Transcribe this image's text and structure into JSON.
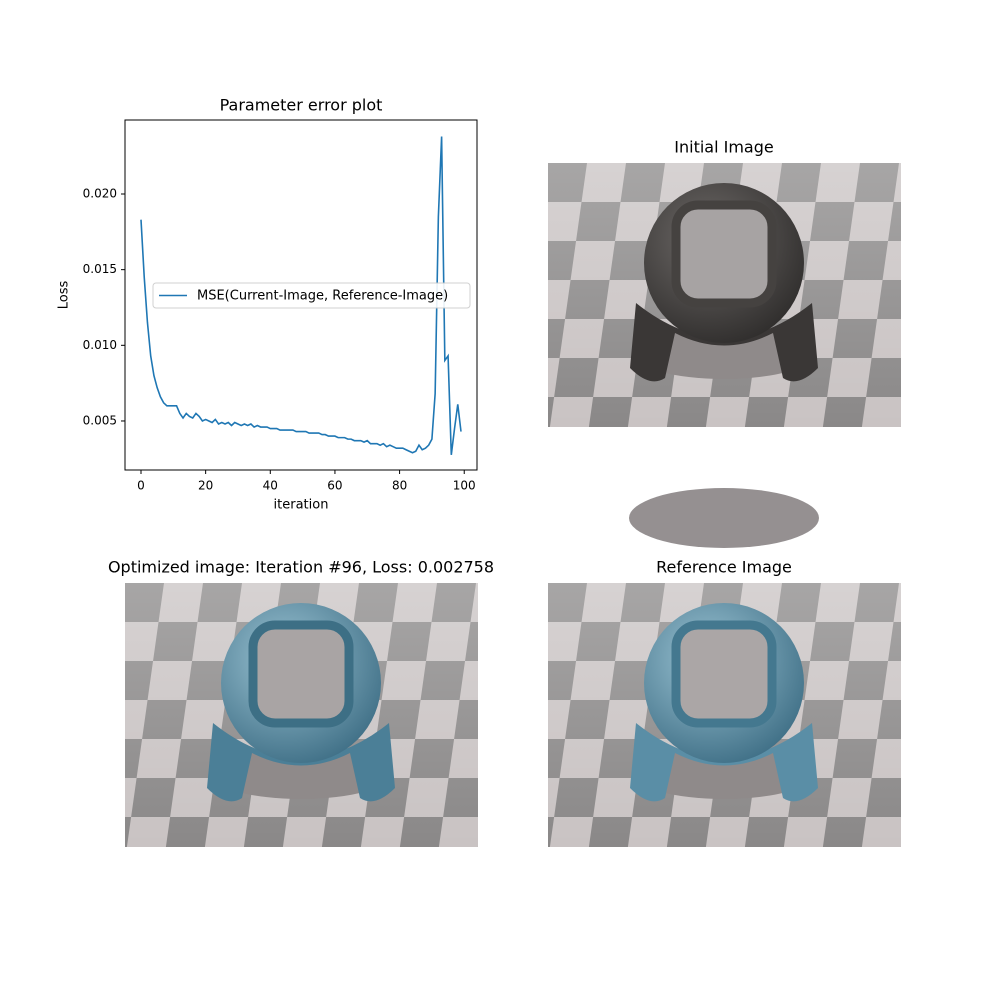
{
  "chart_data": {
    "type": "line",
    "title": "Parameter error plot",
    "xlabel": "iteration",
    "ylabel": "Loss",
    "x": [
      0,
      1,
      2,
      3,
      4,
      5,
      6,
      7,
      8,
      9,
      10,
      11,
      12,
      13,
      14,
      15,
      16,
      17,
      18,
      19,
      20,
      21,
      22,
      23,
      24,
      25,
      26,
      27,
      28,
      29,
      30,
      31,
      32,
      33,
      34,
      35,
      36,
      37,
      38,
      39,
      40,
      41,
      42,
      43,
      44,
      45,
      46,
      47,
      48,
      49,
      50,
      51,
      52,
      53,
      54,
      55,
      56,
      57,
      58,
      59,
      60,
      61,
      62,
      63,
      64,
      65,
      66,
      67,
      68,
      69,
      70,
      71,
      72,
      73,
      74,
      75,
      76,
      77,
      78,
      79,
      80,
      81,
      82,
      83,
      84,
      85,
      86,
      87,
      88,
      89,
      90,
      91,
      92,
      93,
      94,
      95,
      96,
      97,
      98,
      99
    ],
    "series": [
      {
        "name": "MSE(Current-Image, Reference-Image)",
        "color": "#1f77b4",
        "values": [
          0.0183,
          0.0145,
          0.0115,
          0.0093,
          0.008,
          0.0072,
          0.0066,
          0.0062,
          0.006,
          0.006,
          0.006,
          0.006,
          0.0055,
          0.0052,
          0.0055,
          0.0053,
          0.0052,
          0.0055,
          0.0053,
          0.005,
          0.0051,
          0.005,
          0.0049,
          0.0051,
          0.0048,
          0.0049,
          0.0048,
          0.0049,
          0.0047,
          0.0049,
          0.0048,
          0.0047,
          0.0048,
          0.0047,
          0.0048,
          0.0046,
          0.0047,
          0.0046,
          0.0046,
          0.0046,
          0.0045,
          0.0045,
          0.0045,
          0.0044,
          0.0044,
          0.0044,
          0.0044,
          0.0044,
          0.0043,
          0.0043,
          0.0043,
          0.0043,
          0.0042,
          0.0042,
          0.0042,
          0.0042,
          0.0041,
          0.0041,
          0.004,
          0.004,
          0.004,
          0.0039,
          0.0039,
          0.0039,
          0.0038,
          0.0038,
          0.0037,
          0.0037,
          0.0037,
          0.0036,
          0.0037,
          0.0035,
          0.0035,
          0.0035,
          0.0034,
          0.0035,
          0.0033,
          0.0034,
          0.0033,
          0.0032,
          0.0032,
          0.0032,
          0.0031,
          0.003,
          0.0029,
          0.003,
          0.0034,
          0.0031,
          0.0032,
          0.0034,
          0.0038,
          0.0068,
          0.0185,
          0.0238,
          0.009,
          0.0093,
          0.002758,
          0.0045,
          0.0061,
          0.0043
        ]
      }
    ],
    "xlim": [
      -4.95,
      103.95
    ],
    "xticks": [
      0,
      20,
      40,
      60,
      80,
      100
    ],
    "ylim": [
      0.00176,
      0.02489
    ],
    "yticks": [
      0.005,
      {
        "value": 0.01,
        "label": "0.010"
      },
      0.015,
      {
        "value": 0.02,
        "label": "0.020"
      }
    ],
    "legend": "center left",
    "grid": false
  },
  "panels": [
    {
      "title": "Initial Image"
    },
    {
      "title": "Optimized image: Iteration #96, Loss: 0.002758"
    },
    {
      "title": "Reference Image"
    }
  ]
}
